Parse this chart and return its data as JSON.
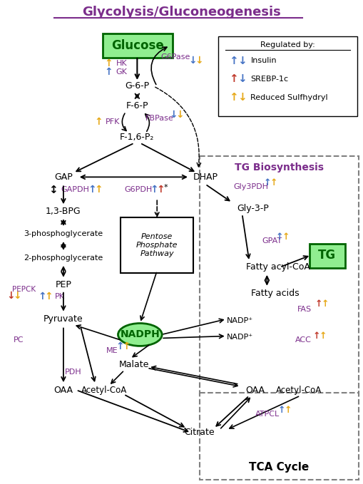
{
  "title": "Glycolysis/Gluconeogenesis",
  "bg_color": "#ffffff",
  "title_color": "#7B2D8B",
  "legend_title": "Regulated by:",
  "tg_biosynthesis_label": "TG Biosynthesis",
  "tca_label": "TCA Cycle",
  "tg_label": "TG",
  "glucose_label": "Glucose",
  "nadph_label": "NADPH",
  "pentose_label": "Pentose\nPhosphate\nPathway",
  "purple": "#7B2D8B",
  "blue": "#4472C4",
  "red": "#C0392B",
  "orange": "#E6A817",
  "black": "#000000",
  "green_bg": "#90EE90",
  "green_text": "#006400"
}
